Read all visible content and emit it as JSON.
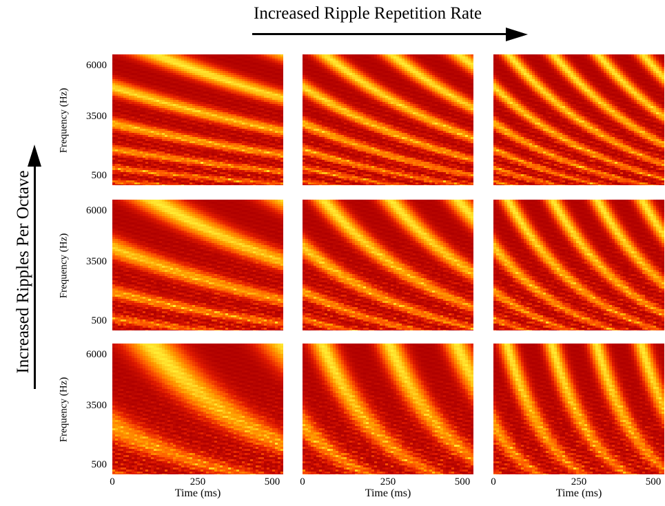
{
  "figure": {
    "top_title": "Increased Ripple Repetition Rate",
    "side_title": "Increased Ripples Per Octave"
  },
  "chart_data": {
    "type": "heatmap",
    "colormap": [
      "#b00000",
      "#e01a00",
      "#ff5a00",
      "#ffa000",
      "#ffff40"
    ],
    "rows": 3,
    "cols": 3,
    "ylabel": "Frequency (Hz)",
    "xlabel": "Time (ms)",
    "yticks": [
      "6000",
      "3500",
      "500"
    ],
    "xticks": [
      "0",
      "250",
      "500"
    ],
    "xlim": [
      0,
      500
    ],
    "row_variable": "ripples per octave (increases upward)",
    "col_variable": "ripple repetition rate (increases rightward)",
    "panels": [
      {
        "row": 0,
        "col": 0,
        "density": 3,
        "rate": 1
      },
      {
        "row": 0,
        "col": 1,
        "density": 3,
        "rate": 2
      },
      {
        "row": 0,
        "col": 2,
        "density": 3,
        "rate": 3
      },
      {
        "row": 1,
        "col": 0,
        "density": 2,
        "rate": 1
      },
      {
        "row": 1,
        "col": 1,
        "density": 2,
        "rate": 2
      },
      {
        "row": 1,
        "col": 2,
        "density": 2,
        "rate": 3
      },
      {
        "row": 2,
        "col": 0,
        "density": 1,
        "rate": 1
      },
      {
        "row": 2,
        "col": 1,
        "density": 1,
        "rate": 2
      },
      {
        "row": 2,
        "col": 2,
        "density": 1,
        "rate": 3
      }
    ]
  }
}
